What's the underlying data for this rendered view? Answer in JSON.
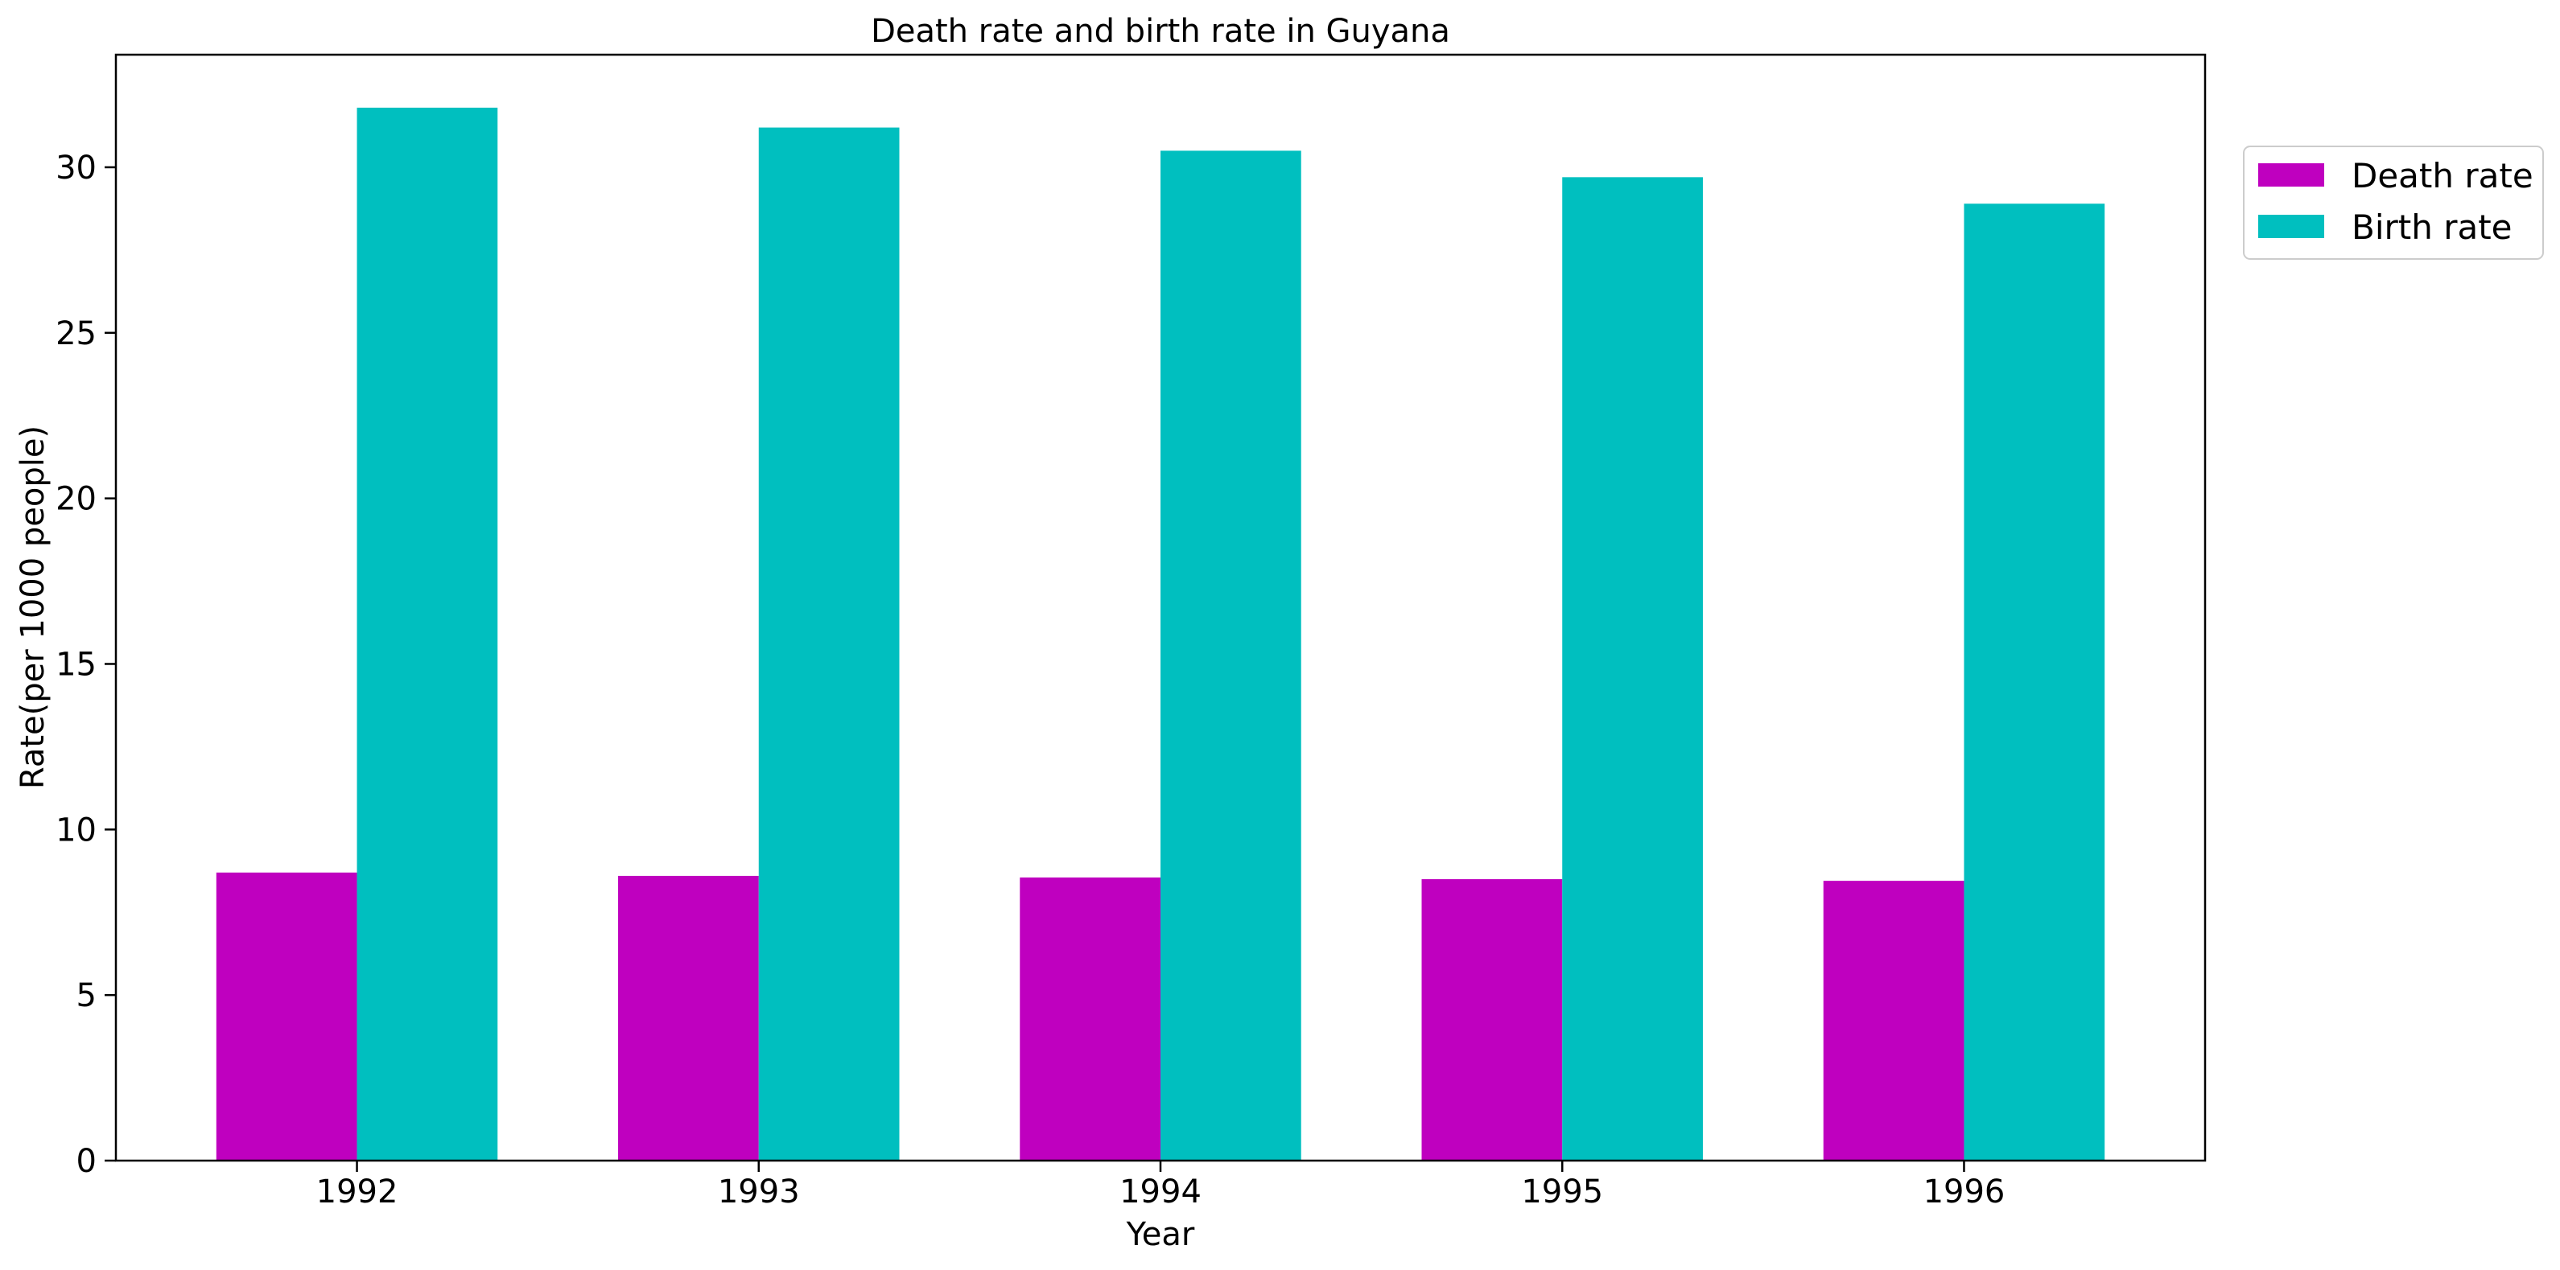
{
  "chart_data": {
    "type": "bar",
    "title": "Death rate and birth rate in Guyana",
    "xlabel": "Year",
    "ylabel": "Rate(per 1000 people)",
    "categories": [
      "1992",
      "1993",
      "1994",
      "1995",
      "1996"
    ],
    "series": [
      {
        "name": "Death rate",
        "color": "#bf00bf",
        "values": [
          8.7,
          8.6,
          8.55,
          8.5,
          8.45
        ]
      },
      {
        "name": "Birth rate",
        "color": "#00bfbf",
        "values": [
          31.8,
          31.2,
          30.5,
          29.7,
          28.9
        ]
      }
    ],
    "ylim": [
      0,
      33.4
    ],
    "yticks": [
      "0",
      "5",
      "10",
      "15",
      "20",
      "25",
      "30"
    ],
    "grid": false,
    "legend_position": "upper-right-outside"
  }
}
